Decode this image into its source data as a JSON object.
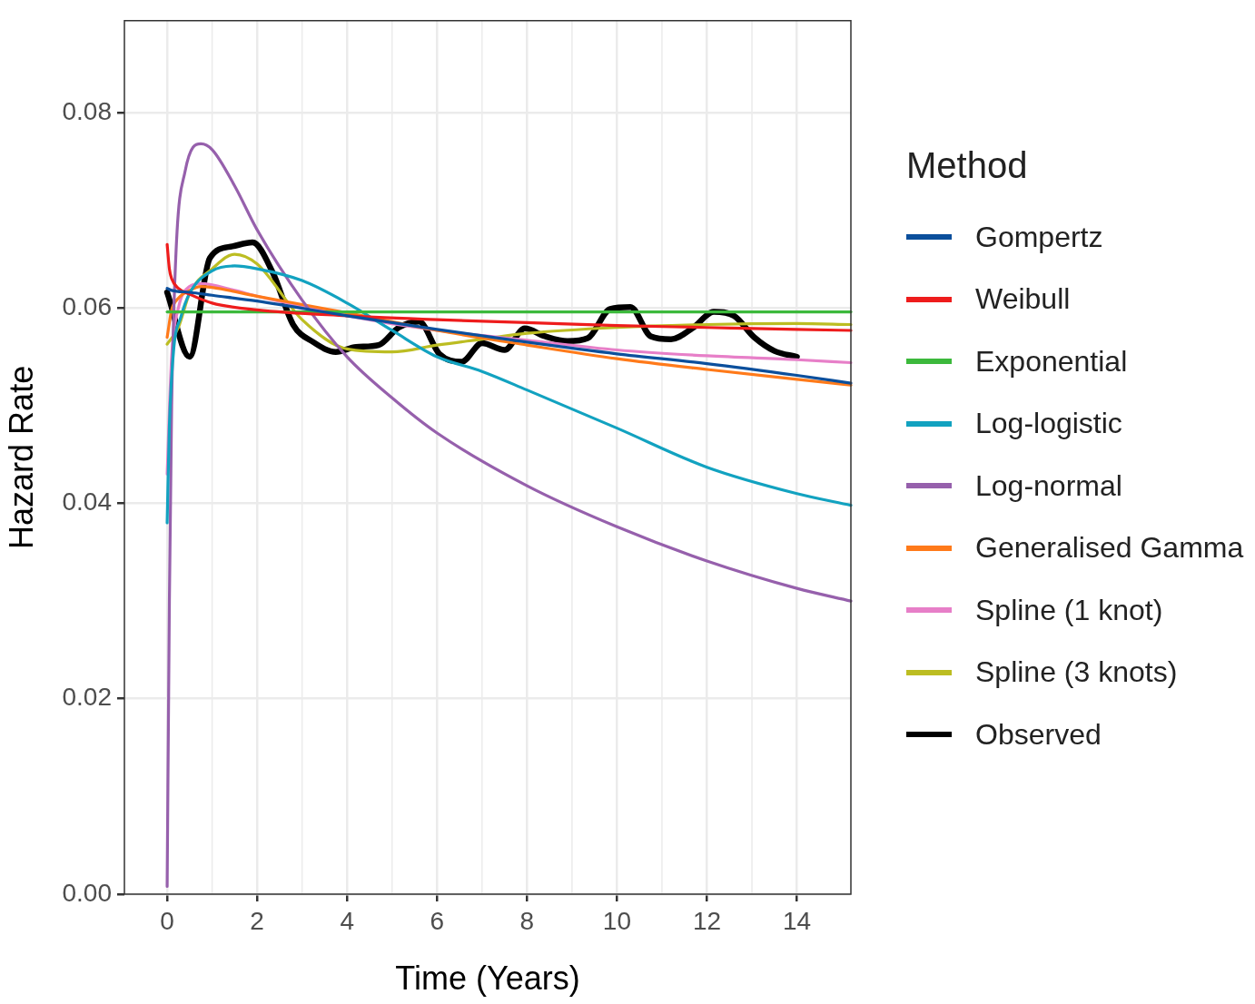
{
  "chart_data": {
    "type": "line",
    "xlabel": "Time (Years)",
    "ylabel": "Hazard Rate",
    "legend_title": "Method",
    "legend": "right",
    "grid": true,
    "marker": "none",
    "line_style": "solid",
    "xlim": [
      -0.95,
      15.2
    ],
    "xticks": [
      0,
      2,
      4,
      6,
      8,
      10,
      12,
      14
    ],
    "ylim": [
      0,
      0.0894
    ],
    "yticks": [
      {
        "value": 0,
        "label": "0.00"
      },
      {
        "value": 0.02,
        "label": "0.02"
      },
      {
        "value": 0.04,
        "label": "0.04"
      },
      {
        "value": 0.06,
        "label": "0.06"
      },
      {
        "value": 0.08,
        "label": "0.08"
      }
    ],
    "series": [
      {
        "name": "Gompertz",
        "color": "#0b4f9c",
        "x": [
          0,
          0.1,
          0.5,
          1,
          2,
          4,
          6,
          8,
          10,
          12,
          14,
          15.2
        ],
        "values": [
          0.062,
          0.0618,
          0.0616,
          0.0613,
          0.0607,
          0.0592,
          0.0578,
          0.0565,
          0.0553,
          0.0543,
          0.0531,
          0.0523
        ]
      },
      {
        "name": "Weibull",
        "color": "#ee1c1c",
        "x": [
          0,
          0.05,
          0.1,
          0.25,
          0.5,
          1,
          2,
          4,
          6,
          8,
          10,
          12,
          14,
          15.2
        ],
        "values": [
          0.0665,
          0.064,
          0.063,
          0.062,
          0.0614,
          0.0605,
          0.0598,
          0.0592,
          0.0588,
          0.0585,
          0.0582,
          0.058,
          0.0578,
          0.0577
        ]
      },
      {
        "name": "Exponential",
        "color": "#3cb93c",
        "x": [
          0,
          15.2
        ],
        "values": [
          0.0596,
          0.0596
        ]
      },
      {
        "name": "Log-logistic",
        "color": "#12a2c0",
        "x": [
          0,
          0.05,
          0.15,
          0.3,
          0.5,
          1,
          1.5,
          2,
          3,
          4,
          5,
          6,
          7,
          8,
          10,
          12,
          14,
          15.2
        ],
        "values": [
          0.038,
          0.048,
          0.056,
          0.059,
          0.0615,
          0.0638,
          0.0643,
          0.064,
          0.0628,
          0.0605,
          0.0577,
          0.055,
          0.0535,
          0.0516,
          0.0477,
          0.0437,
          0.041,
          0.0398
        ]
      },
      {
        "name": "Log-normal",
        "color": "#9660ac",
        "x": [
          0,
          0.05,
          0.1,
          0.2,
          0.4,
          0.75,
          1,
          1.5,
          2,
          3,
          4,
          5,
          6,
          8,
          10,
          12,
          14,
          15.2
        ],
        "values": [
          0.0008,
          0.03,
          0.05,
          0.066,
          0.074,
          0.0768,
          0.0762,
          0.0725,
          0.068,
          0.0608,
          0.055,
          0.0508,
          0.0472,
          0.0418,
          0.0376,
          0.0341,
          0.0313,
          0.03
        ]
      },
      {
        "name": "Generalised Gamma",
        "color": "#ff7a1a",
        "x": [
          0,
          0.1,
          0.25,
          0.5,
          0.75,
          1,
          2,
          4,
          6,
          8,
          10,
          12,
          14,
          15.2
        ],
        "values": [
          0.057,
          0.0598,
          0.061,
          0.0618,
          0.0622,
          0.0621,
          0.0612,
          0.0595,
          0.0577,
          0.0562,
          0.0548,
          0.0537,
          0.0527,
          0.0521
        ]
      },
      {
        "name": "Spline (1 knot)",
        "color": "#e77fc8",
        "x": [
          0,
          0.1,
          0.25,
          0.5,
          0.75,
          1.5,
          2,
          4,
          6,
          8,
          10,
          12,
          14,
          15.2
        ],
        "values": [
          0.043,
          0.055,
          0.06,
          0.0622,
          0.0625,
          0.0618,
          0.0612,
          0.0592,
          0.0577,
          0.0567,
          0.0557,
          0.0551,
          0.0547,
          0.0544
        ]
      },
      {
        "name": "Spline (3 knots)",
        "color": "#bcbd22",
        "x": [
          0,
          0.25,
          0.5,
          1,
          1.5,
          2,
          3,
          4,
          5,
          6,
          7,
          8,
          10,
          12,
          14,
          15.2
        ],
        "values": [
          0.0563,
          0.058,
          0.0615,
          0.064,
          0.0655,
          0.0645,
          0.0588,
          0.0558,
          0.0555,
          0.0562,
          0.0568,
          0.0574,
          0.058,
          0.0583,
          0.0584,
          0.0583
        ]
      },
      {
        "name": "Observed",
        "color": "#000000",
        "x": [
          0,
          0.5,
          0.95,
          1.45,
          1.9,
          2.35,
          2.8,
          3.25,
          3.75,
          4.2,
          4.7,
          5.15,
          5.6,
          6.05,
          6.55,
          7,
          7.5,
          7.95,
          8.4,
          8.9,
          9.35,
          9.85,
          10.3,
          10.75,
          11.2,
          11.7,
          12.15,
          12.6,
          13.05,
          13.5,
          14
        ],
        "values": [
          0.0616,
          0.055,
          0.0651,
          0.0663,
          0.0667,
          0.0636,
          0.0583,
          0.0565,
          0.0555,
          0.056,
          0.0562,
          0.058,
          0.0586,
          0.0553,
          0.0545,
          0.0564,
          0.0557,
          0.0579,
          0.0571,
          0.0566,
          0.0569,
          0.0599,
          0.0601,
          0.0571,
          0.0568,
          0.058,
          0.0596,
          0.0592,
          0.057,
          0.0556,
          0.055
        ]
      }
    ]
  }
}
